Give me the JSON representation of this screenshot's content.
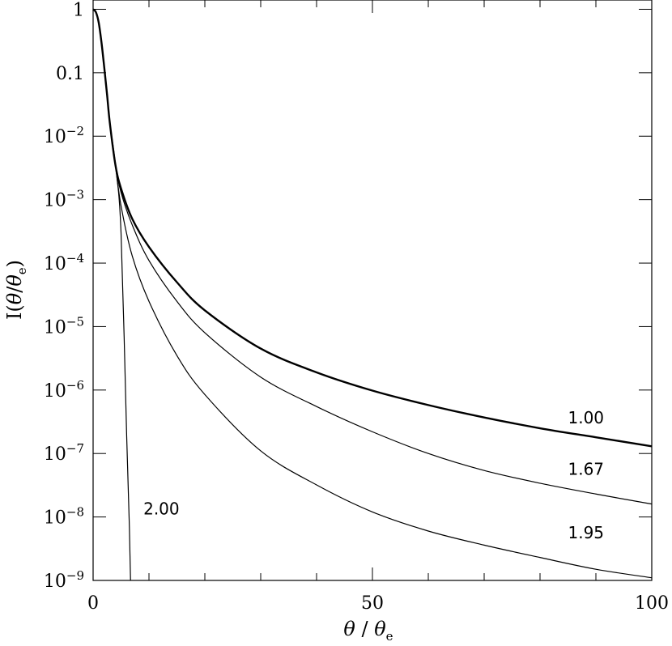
{
  "chart_data": {
    "type": "line",
    "title": "",
    "xlabel": "θ / θe",
    "ylabel": "I(θ/θe)",
    "xlim": [
      0,
      100
    ],
    "ylim": [
      1e-09,
      1.4
    ],
    "yscale": "log",
    "grid": false,
    "x_ticks": [
      {
        "value": 0,
        "label": "0"
      },
      {
        "value": 50,
        "label": "50"
      },
      {
        "value": 100,
        "label": "100"
      }
    ],
    "y_ticks": [
      {
        "value": 1,
        "label": "1"
      },
      {
        "value": 0.1,
        "label": "0.1"
      },
      {
        "value": 0.01,
        "base": "10",
        "exp": "−2"
      },
      {
        "value": 0.001,
        "base": "10",
        "exp": "−3"
      },
      {
        "value": 0.0001,
        "base": "10",
        "exp": "−4"
      },
      {
        "value": 1e-05,
        "base": "10",
        "exp": "−5"
      },
      {
        "value": 1e-06,
        "base": "10",
        "exp": "−6"
      },
      {
        "value": 1e-07,
        "base": "10",
        "exp": "−7"
      },
      {
        "value": 1e-08,
        "base": "10",
        "exp": "−8"
      },
      {
        "value": 1e-09,
        "base": "10",
        "exp": "−9"
      }
    ],
    "series": [
      {
        "name": "1.00",
        "label_at": [
          85,
          3e-07
        ],
        "line_width": 2.4,
        "points": [
          [
            0,
            1
          ],
          [
            0.5,
            0.9
          ],
          [
            1,
            0.62
          ],
          [
            1.5,
            0.3
          ],
          [
            2,
            0.12
          ],
          [
            2.5,
            0.045
          ],
          [
            3,
            0.016
          ],
          [
            4,
            0.0035
          ],
          [
            5,
            0.0015
          ],
          [
            7,
            0.0005
          ],
          [
            10,
            0.00018
          ],
          [
            15,
            5e-05
          ],
          [
            20,
            1.8e-05
          ],
          [
            30,
            4.5e-06
          ],
          [
            40,
            1.9e-06
          ],
          [
            50,
            9.8e-07
          ],
          [
            60,
            5.8e-07
          ],
          [
            70,
            3.7e-07
          ],
          [
            80,
            2.5e-07
          ],
          [
            90,
            1.8e-07
          ],
          [
            100,
            1.3e-07
          ]
        ]
      },
      {
        "name": "1.67",
        "label_at": [
          85,
          4.6e-08
        ],
        "line_width": 1.2,
        "points": [
          [
            0,
            1
          ],
          [
            0.5,
            0.9
          ],
          [
            1,
            0.62
          ],
          [
            1.5,
            0.3
          ],
          [
            2,
            0.12
          ],
          [
            2.5,
            0.045
          ],
          [
            3,
            0.016
          ],
          [
            4,
            0.0035
          ],
          [
            5,
            0.0013
          ],
          [
            7,
            0.0004
          ],
          [
            10,
            0.00011
          ],
          [
            15,
            2.5e-05
          ],
          [
            20,
            8e-06
          ],
          [
            30,
            1.6e-06
          ],
          [
            40,
            5.5e-07
          ],
          [
            50,
            2.2e-07
          ],
          [
            60,
            1e-07
          ],
          [
            70,
            5.4e-08
          ],
          [
            80,
            3.4e-08
          ],
          [
            90,
            2.3e-08
          ],
          [
            100,
            1.6e-08
          ]
        ]
      },
      {
        "name": "1.95",
        "label_at": [
          85,
          4.6e-09
        ],
        "line_width": 1.2,
        "points": [
          [
            0,
            1
          ],
          [
            0.5,
            0.9
          ],
          [
            1,
            0.62
          ],
          [
            1.5,
            0.3
          ],
          [
            2,
            0.12
          ],
          [
            2.5,
            0.045
          ],
          [
            3,
            0.016
          ],
          [
            4,
            0.0035
          ],
          [
            5,
            0.0008
          ],
          [
            7,
            0.00013
          ],
          [
            10,
            2.5e-05
          ],
          [
            15,
            3.5e-06
          ],
          [
            20,
            8.5e-07
          ],
          [
            30,
            1.1e-07
          ],
          [
            40,
            3.2e-08
          ],
          [
            50,
            1.2e-08
          ],
          [
            60,
            6e-09
          ],
          [
            70,
            3.6e-09
          ],
          [
            80,
            2.3e-09
          ],
          [
            90,
            1.5e-09
          ],
          [
            100,
            1.1e-09
          ]
        ]
      },
      {
        "name": "2.00",
        "label_at": [
          9,
          1.1e-08
        ],
        "line_width": 1.2,
        "points": [
          [
            0,
            1
          ],
          [
            0.5,
            0.9
          ],
          [
            1,
            0.62
          ],
          [
            1.5,
            0.3
          ],
          [
            2,
            0.12
          ],
          [
            2.5,
            0.045
          ],
          [
            3,
            0.016
          ],
          [
            4,
            0.0035
          ],
          [
            5,
            0.0003
          ],
          [
            6,
            2e-07
          ],
          [
            6.5,
            6.5e-09
          ],
          [
            6.7,
            1e-09
          ]
        ]
      }
    ]
  }
}
